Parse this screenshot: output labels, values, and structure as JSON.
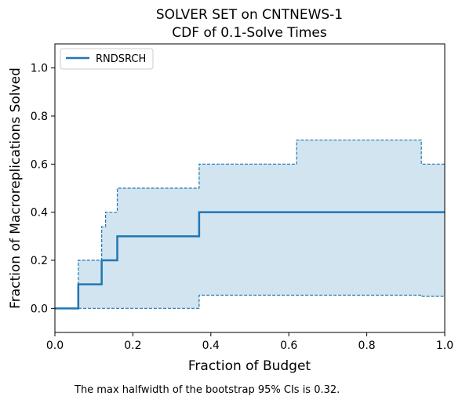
{
  "chart_data": {
    "type": "line",
    "title_line1": "SOLVER SET on CNTNEWS-1",
    "title_line2": "CDF of 0.1-Solve Times",
    "xlabel": "Fraction of Budget",
    "ylabel": "Fraction of Macroreplications Solved",
    "xlim": [
      0,
      1
    ],
    "ylim": [
      -0.1,
      1.1
    ],
    "xticks": [
      0.0,
      0.2,
      0.4,
      0.6,
      0.8,
      1.0
    ],
    "xtick_labels": [
      "0.0",
      "0.2",
      "0.4",
      "0.6",
      "0.8",
      "1.0"
    ],
    "yticks": [
      0.0,
      0.2,
      0.4,
      0.6,
      0.8,
      1.0
    ],
    "ytick_labels": [
      "0.0",
      "0.2",
      "0.4",
      "0.6",
      "0.8",
      "1.0"
    ],
    "grid": false,
    "legend_position": "top-left",
    "series": [
      {
        "name": "RNDSRCH",
        "color": "#1f77b4",
        "x": [
          0.0,
          0.06,
          0.12,
          0.16,
          0.37,
          1.0
        ],
        "y": [
          0.0,
          0.1,
          0.2,
          0.3,
          0.4,
          0.4
        ],
        "ci_upper": {
          "x": [
            0.0,
            0.06,
            0.12,
            0.13,
            0.16,
            0.37,
            0.62,
            0.94,
            1.0
          ],
          "y": [
            0.0,
            0.2,
            0.34,
            0.4,
            0.5,
            0.6,
            0.7,
            0.6,
            0.6
          ]
        },
        "ci_lower": {
          "x": [
            0.0,
            0.37,
            0.94,
            1.0
          ],
          "y": [
            0.0,
            0.055,
            0.05,
            0.05
          ]
        }
      }
    ],
    "footnote": "The max halfwidth of the bootstrap 95% CIs is 0.32."
  }
}
